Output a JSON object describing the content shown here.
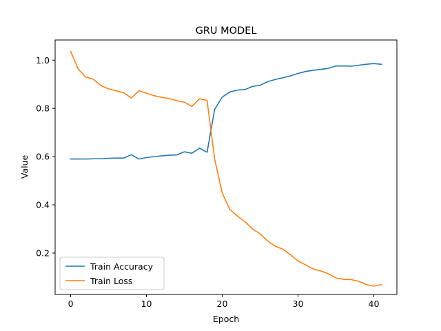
{
  "chart_data": {
    "type": "line",
    "title": "GRU MODEL",
    "xlabel": "Epoch",
    "ylabel": "Value",
    "xlim": [
      -2.05,
      43.05
    ],
    "ylim": [
      0.0283,
      1.0837
    ],
    "xticks": [
      0,
      10,
      20,
      30,
      40
    ],
    "yticks": [
      0.2,
      0.4,
      0.6,
      0.8,
      1.0
    ],
    "xtick_labels": [
      "0",
      "10",
      "20",
      "30",
      "40"
    ],
    "ytick_labels": [
      "0.2",
      "0.4",
      "0.6",
      "0.8",
      "1.0"
    ],
    "grid": false,
    "legend_position": "lower-left",
    "x": [
      0,
      1,
      2,
      3,
      4,
      5,
      6,
      7,
      8,
      9,
      10,
      11,
      12,
      13,
      14,
      15,
      16,
      17,
      18,
      19,
      20,
      21,
      22,
      23,
      24,
      25,
      26,
      27,
      28,
      29,
      30,
      31,
      32,
      33,
      34,
      35,
      36,
      37,
      38,
      39,
      40,
      41
    ],
    "series": [
      {
        "name": "Train Accuracy",
        "color": "#1f77b4",
        "values": [
          0.59,
          0.59,
          0.59,
          0.591,
          0.591,
          0.593,
          0.594,
          0.594,
          0.608,
          0.59,
          0.596,
          0.6,
          0.603,
          0.606,
          0.607,
          0.62,
          0.614,
          0.635,
          0.618,
          0.796,
          0.847,
          0.868,
          0.876,
          0.878,
          0.891,
          0.896,
          0.911,
          0.92,
          0.927,
          0.935,
          0.945,
          0.953,
          0.958,
          0.962,
          0.966,
          0.976,
          0.976,
          0.975,
          0.979,
          0.983,
          0.986,
          0.983
        ]
      },
      {
        "name": "Train Loss",
        "color": "#ff7f0e",
        "values": [
          1.036,
          0.963,
          0.93,
          0.921,
          0.895,
          0.881,
          0.873,
          0.865,
          0.843,
          0.873,
          0.863,
          0.853,
          0.846,
          0.841,
          0.832,
          0.826,
          0.808,
          0.84,
          0.833,
          0.59,
          0.449,
          0.381,
          0.354,
          0.33,
          0.3,
          0.28,
          0.25,
          0.228,
          0.216,
          0.193,
          0.167,
          0.151,
          0.134,
          0.126,
          0.114,
          0.097,
          0.091,
          0.09,
          0.083,
          0.069,
          0.063,
          0.069
        ]
      }
    ]
  }
}
